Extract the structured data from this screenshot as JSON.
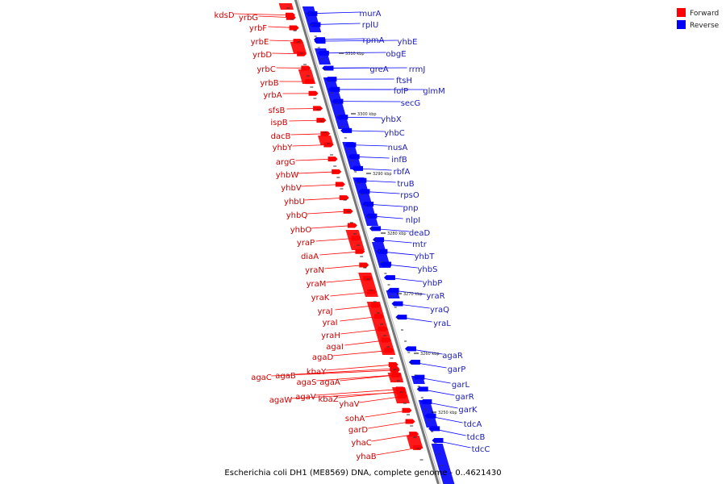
{
  "caption": "Escherichia coli DH1 (ME8569) DNA, complete genome - 0..4621430",
  "colors": {
    "forward": "#ff0000",
    "reverse": "#0000ff",
    "forward_text": "#cc0000",
    "reverse_text": "#1a1ab8",
    "axis": "#777777"
  },
  "legend": {
    "forward": "Forward",
    "reverse": "Reverse"
  },
  "ticks": [
    "3310 kbp",
    "3300 kbp",
    "3290 kbp",
    "3280 kbp",
    "3270 kbp",
    "3260 kbp",
    "3250 kbp"
  ],
  "forward_genes": [
    "kdsD",
    "yrbG",
    "yrbF",
    "yrbE",
    "yrbD",
    "yrbC",
    "yrbB",
    "yrbA",
    "sfsB",
    "ispB",
    "dacB",
    "yhbY",
    "argG",
    "yhbW",
    "yhbV",
    "yhbU",
    "yhbQ",
    "yhbO",
    "yraP",
    "diaA",
    "yraN",
    "yraM",
    "yraK",
    "yraJ",
    "yraI",
    "yraH",
    "agaI",
    "agaD",
    "kbaY",
    "agaC",
    "agaB",
    "agaS",
    "agaA",
    "agaW",
    "agaV",
    "kbaZ",
    "yhaV",
    "sohA",
    "garD",
    "yhaC",
    "yhaB"
  ],
  "reverse_genes": [
    "murA",
    "rplU",
    "rpmA",
    "yhbE",
    "obgE",
    "rrmJ",
    "greA",
    "ftsH",
    "folP",
    "glmM",
    "secG",
    "yhbX",
    "yhbC",
    "nusA",
    "infB",
    "rbfA",
    "truB",
    "rpsO",
    "pnp",
    "nlpI",
    "deaD",
    "mtr",
    "yhbT",
    "yhbS",
    "yhbP",
    "yraR",
    "yraQ",
    "yraL",
    "agaR",
    "garP",
    "garL",
    "garR",
    "garK",
    "tdcA",
    "tdcB",
    "tdcC"
  ]
}
